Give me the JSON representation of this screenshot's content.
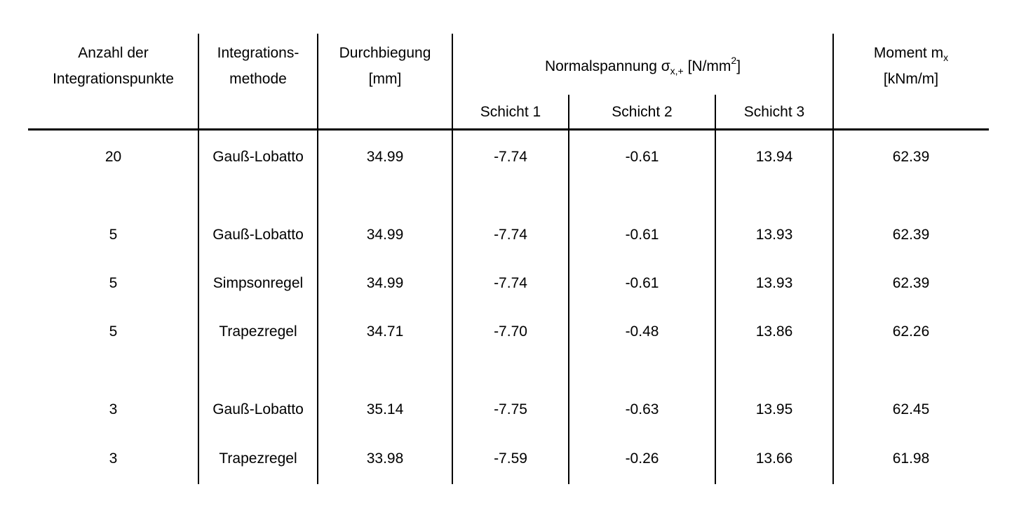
{
  "colors": {
    "text": "#000000",
    "lines": "#000000",
    "background": "#ffffff"
  },
  "table": {
    "headers": {
      "points": {
        "line1": "Anzahl der",
        "line2": "Integrationspunkte"
      },
      "method": {
        "line1": "Integrations-",
        "line2": "methode"
      },
      "deflection": {
        "line1": "Durchbiegung",
        "line2": "[mm]"
      },
      "normal_stress_group": {
        "prefix": "Normalspannung σ",
        "subscript": "x,+",
        "unit_prefix": " [N/mm",
        "unit_superscript": "2",
        "unit_suffix": "]"
      },
      "layers": [
        "Schicht 1",
        "Schicht 2",
        "Schicht 3"
      ],
      "moment": {
        "prefix": "Moment m",
        "subscript": "x",
        "line2": "[kNm/m]"
      }
    },
    "rows": [
      {
        "points": "20",
        "method": "Gauß-Lobatto",
        "deflection": "34.99",
        "layer1": "-7.74",
        "layer2": "-0.61",
        "layer3": "13.94",
        "moment": "62.39"
      },
      {
        "points": "5",
        "method": "Gauß-Lobatto",
        "deflection": "34.99",
        "layer1": "-7.74",
        "layer2": "-0.61",
        "layer3": "13.93",
        "moment": "62.39"
      },
      {
        "points": "5",
        "method": "Simpsonregel",
        "deflection": "34.99",
        "layer1": "-7.74",
        "layer2": "-0.61",
        "layer3": "13.93",
        "moment": "62.39"
      },
      {
        "points": "5",
        "method": "Trapezregel",
        "deflection": "34.71",
        "layer1": "-7.70",
        "layer2": "-0.48",
        "layer3": "13.86",
        "moment": "62.26"
      },
      {
        "points": "3",
        "method": "Gauß-Lobatto",
        "deflection": "35.14",
        "layer1": "-7.75",
        "layer2": "-0.63",
        "layer3": "13.95",
        "moment": "62.45"
      },
      {
        "points": "3",
        "method": "Trapezregel",
        "deflection": "33.98",
        "layer1": "-7.59",
        "layer2": "-0.26",
        "layer3": "13.66",
        "moment": "61.98"
      }
    ]
  }
}
